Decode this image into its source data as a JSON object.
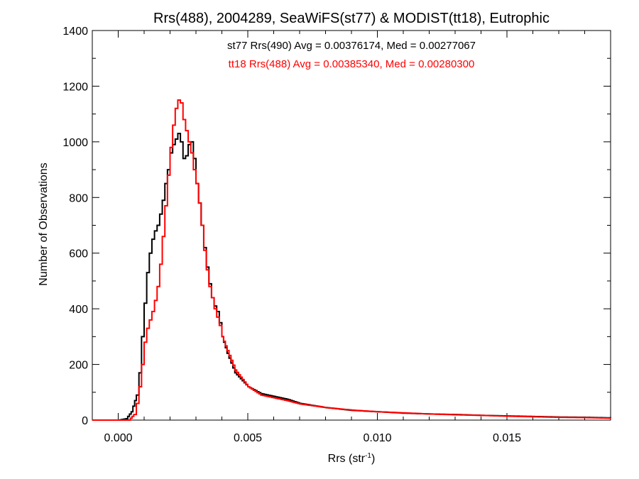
{
  "chart_data": {
    "type": "line",
    "title": "Rrs(488), 2004289, SeaWiFS(st77) & MODIST(tt18), Eutrophic",
    "xlabel": "Rrs (str",
    "xlabel_sup": "-1",
    "xlabel_close": ")",
    "ylabel": "Number of Observations",
    "xlim": [
      -0.001,
      0.019
    ],
    "ylim": [
      0,
      1400
    ],
    "x_ticks": [
      0.0,
      0.005,
      0.01,
      0.015
    ],
    "x_tick_labels": [
      "0.000",
      "0.005",
      "0.010",
      "0.015"
    ],
    "y_ticks": [
      0,
      200,
      400,
      600,
      800,
      1000,
      1200,
      1400
    ],
    "y_tick_labels": [
      "0",
      "200",
      "400",
      "600",
      "800",
      "1000",
      "1200",
      "1400"
    ],
    "grid": false,
    "annotations": [
      {
        "text": "st77 Rrs(490) Avg = 0.00376174, Med = 0.00277067",
        "color": "#000000"
      },
      {
        "text": "tt18 Rrs(488) Avg = 0.00385340, Med = 0.00280300",
        "color": "#ff0000"
      }
    ],
    "series": [
      {
        "color": "#000000",
        "points": [
          [
            -0.001,
            0
          ],
          [
            0.0,
            0
          ],
          [
            0.0003,
            5
          ],
          [
            0.0005,
            30
          ],
          [
            0.0007,
            90
          ],
          [
            0.0008,
            170
          ],
          [
            0.0009,
            300
          ],
          [
            0.001,
            420
          ],
          [
            0.0011,
            530
          ],
          [
            0.0012,
            600
          ],
          [
            0.0013,
            650
          ],
          [
            0.0014,
            680
          ],
          [
            0.0015,
            700
          ],
          [
            0.0016,
            740
          ],
          [
            0.0017,
            790
          ],
          [
            0.0018,
            850
          ],
          [
            0.0019,
            900
          ],
          [
            0.002,
            960
          ],
          [
            0.0021,
            990
          ],
          [
            0.0022,
            1010
          ],
          [
            0.0023,
            1030
          ],
          [
            0.0024,
            1000
          ],
          [
            0.0025,
            940
          ],
          [
            0.0026,
            950
          ],
          [
            0.0027,
            990
          ],
          [
            0.0028,
            1000
          ],
          [
            0.0029,
            940
          ],
          [
            0.003,
            850
          ],
          [
            0.0031,
            780
          ],
          [
            0.0032,
            700
          ],
          [
            0.0033,
            620
          ],
          [
            0.0034,
            550
          ],
          [
            0.0035,
            490
          ],
          [
            0.0036,
            440
          ],
          [
            0.0037,
            410
          ],
          [
            0.0038,
            390
          ],
          [
            0.0039,
            350
          ],
          [
            0.004,
            300
          ],
          [
            0.0042,
            240
          ],
          [
            0.0045,
            170
          ],
          [
            0.005,
            120
          ],
          [
            0.0055,
            95
          ],
          [
            0.006,
            85
          ],
          [
            0.0065,
            75
          ],
          [
            0.007,
            60
          ],
          [
            0.008,
            45
          ],
          [
            0.009,
            35
          ],
          [
            0.01,
            30
          ],
          [
            0.011,
            25
          ],
          [
            0.012,
            22
          ],
          [
            0.013,
            20
          ],
          [
            0.014,
            17
          ],
          [
            0.015,
            15
          ],
          [
            0.016,
            13
          ],
          [
            0.017,
            11
          ],
          [
            0.018,
            10
          ],
          [
            0.019,
            8
          ]
        ]
      },
      {
        "color": "#ff0000",
        "points": [
          [
            -0.001,
            0
          ],
          [
            0.0004,
            0
          ],
          [
            0.0006,
            20
          ],
          [
            0.0007,
            60
          ],
          [
            0.0008,
            120
          ],
          [
            0.0009,
            200
          ],
          [
            0.001,
            280
          ],
          [
            0.0011,
            330
          ],
          [
            0.0012,
            360
          ],
          [
            0.0013,
            390
          ],
          [
            0.0014,
            430
          ],
          [
            0.0015,
            480
          ],
          [
            0.0016,
            560
          ],
          [
            0.0017,
            660
          ],
          [
            0.0018,
            770
          ],
          [
            0.0019,
            880
          ],
          [
            0.002,
            980
          ],
          [
            0.0021,
            1060
          ],
          [
            0.0022,
            1120
          ],
          [
            0.0023,
            1150
          ],
          [
            0.0024,
            1140
          ],
          [
            0.0025,
            1080
          ],
          [
            0.0026,
            1040
          ],
          [
            0.0027,
            1000
          ],
          [
            0.0028,
            960
          ],
          [
            0.0029,
            900
          ],
          [
            0.003,
            850
          ],
          [
            0.0031,
            780
          ],
          [
            0.0032,
            700
          ],
          [
            0.0033,
            610
          ],
          [
            0.0034,
            540
          ],
          [
            0.0035,
            480
          ],
          [
            0.0036,
            440
          ],
          [
            0.0037,
            400
          ],
          [
            0.0038,
            370
          ],
          [
            0.0039,
            340
          ],
          [
            0.004,
            300
          ],
          [
            0.0042,
            250
          ],
          [
            0.0045,
            180
          ],
          [
            0.005,
            120
          ],
          [
            0.0055,
            90
          ],
          [
            0.006,
            80
          ],
          [
            0.0065,
            70
          ],
          [
            0.007,
            58
          ],
          [
            0.008,
            45
          ],
          [
            0.009,
            36
          ],
          [
            0.01,
            30
          ],
          [
            0.011,
            26
          ],
          [
            0.012,
            22
          ],
          [
            0.013,
            19
          ],
          [
            0.014,
            17
          ],
          [
            0.015,
            14
          ],
          [
            0.016,
            12
          ],
          [
            0.017,
            10
          ],
          [
            0.018,
            9
          ],
          [
            0.019,
            7
          ]
        ]
      }
    ]
  }
}
